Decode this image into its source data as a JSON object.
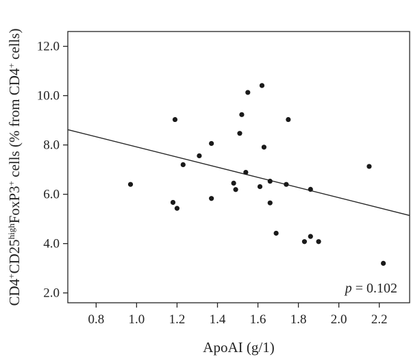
{
  "chart_data": {
    "type": "scatter",
    "title": "",
    "xlabel": "ApoAI (g/1)",
    "ylabel": {
      "parts": [
        {
          "text": "CD4",
          "sup": false
        },
        {
          "text": "+",
          "sup": true
        },
        {
          "text": "CD25",
          "sup": false
        },
        {
          "text": "high",
          "sup": true
        },
        {
          "text": "FoxP3",
          "sup": false
        },
        {
          "text": "+",
          "sup": true
        },
        {
          "text": " cells (% from CD4",
          "sup": false
        },
        {
          "text": "+",
          "sup": true
        },
        {
          "text": " cells)",
          "sup": false
        }
      ]
    },
    "xlim": [
      0.66,
      2.35
    ],
    "ylim": [
      1.6,
      12.6
    ],
    "xticks": [
      "0.8",
      "1.0",
      "1.2",
      "1.4",
      "1.6",
      "1.8",
      "2.0",
      "2.2"
    ],
    "yticks": [
      "2.0",
      "4.0",
      "6.0",
      "8.0",
      "10.0",
      "12.0"
    ],
    "grid": false,
    "points": [
      {
        "x": 0.97,
        "y": 6.4
      },
      {
        "x": 1.18,
        "y": 5.67
      },
      {
        "x": 1.19,
        "y": 9.03
      },
      {
        "x": 1.2,
        "y": 5.43
      },
      {
        "x": 1.23,
        "y": 7.2
      },
      {
        "x": 1.31,
        "y": 7.56
      },
      {
        "x": 1.37,
        "y": 8.06
      },
      {
        "x": 1.37,
        "y": 5.83
      },
      {
        "x": 1.48,
        "y": 6.45
      },
      {
        "x": 1.49,
        "y": 6.19
      },
      {
        "x": 1.51,
        "y": 8.47
      },
      {
        "x": 1.52,
        "y": 9.23
      },
      {
        "x": 1.54,
        "y": 6.89
      },
      {
        "x": 1.55,
        "y": 10.13
      },
      {
        "x": 1.62,
        "y": 10.41
      },
      {
        "x": 1.61,
        "y": 6.31
      },
      {
        "x": 1.63,
        "y": 7.91
      },
      {
        "x": 1.66,
        "y": 6.53
      },
      {
        "x": 1.66,
        "y": 5.65
      },
      {
        "x": 1.69,
        "y": 4.42
      },
      {
        "x": 1.74,
        "y": 6.4
      },
      {
        "x": 1.75,
        "y": 9.03
      },
      {
        "x": 1.83,
        "y": 4.08
      },
      {
        "x": 1.86,
        "y": 4.29
      },
      {
        "x": 1.86,
        "y": 6.2
      },
      {
        "x": 1.9,
        "y": 4.08
      },
      {
        "x": 2.15,
        "y": 7.13
      },
      {
        "x": 2.22,
        "y": 3.2
      }
    ],
    "regression_line": {
      "x": [
        0.66,
        2.35
      ],
      "y": [
        8.62,
        5.14
      ]
    },
    "annotation": {
      "italic": "p",
      "text": " = 0.102"
    }
  }
}
